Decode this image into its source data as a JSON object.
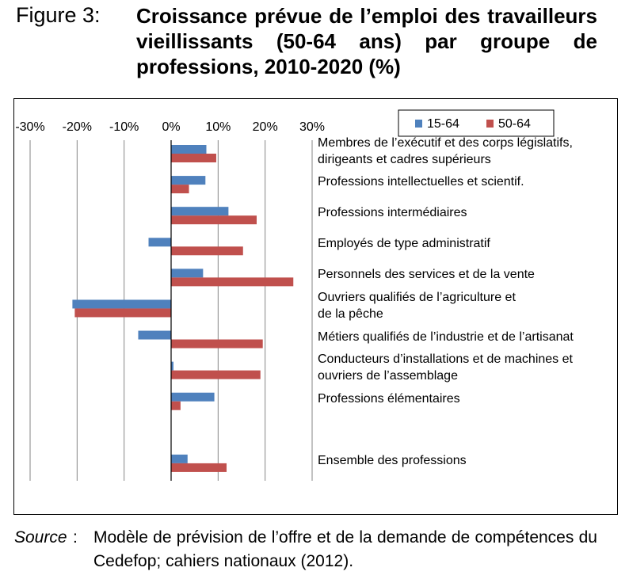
{
  "figure": {
    "label": "Figure 3:",
    "title": "Croissance prévue de l’emploi des travailleurs vieillissants (50-64 ans) par groupe de professions, 2010-2020 (%)"
  },
  "source": {
    "head": "Source",
    "colon": ":",
    "text": "Modèle de prévision de l’offre et de la demande de compétences du Cedefop; cahiers nationaux (2012)."
  },
  "chart_data": {
    "type": "bar",
    "orientation": "horizontal",
    "categories": [
      [
        "Membres de l’exécutif et des corps législatifs,",
        "dirigeants et cadres supérieurs"
      ],
      [
        "Professions intellectuelles et scientif."
      ],
      [
        "Professions intermédiaires"
      ],
      [
        "Employés de type administratif"
      ],
      [
        "Personnels des services et de la vente"
      ],
      [
        "Ouvriers qualifiés de l’agriculture et",
        "de la pêche"
      ],
      [
        "Métiers qualifiés de l’industrie et de l’artisanat"
      ],
      [
        "Conducteurs d’installations et de machines et",
        "ouvriers de l’assemblage"
      ],
      [
        "Professions élémentaires"
      ],
      [],
      [
        "Ensemble des professions"
      ]
    ],
    "series": [
      {
        "name": "15-64",
        "color": "#4f81bd",
        "values": [
          7.5,
          7.3,
          12.2,
          -4.8,
          6.8,
          -21.0,
          -7.0,
          0.5,
          9.2,
          null,
          3.5
        ]
      },
      {
        "name": "50-64",
        "color": "#c0504d",
        "values": [
          9.6,
          3.8,
          18.2,
          15.3,
          26.0,
          -20.5,
          19.5,
          19.0,
          2.0,
          null,
          11.8
        ]
      }
    ],
    "x_ticks": [
      "-30%",
      "-20%",
      "-10%",
      "0%",
      "10%",
      "20%",
      "30%"
    ],
    "xlim": [
      -30,
      30
    ],
    "axis_position": "top",
    "grid": true,
    "legend_position": "top-right"
  }
}
